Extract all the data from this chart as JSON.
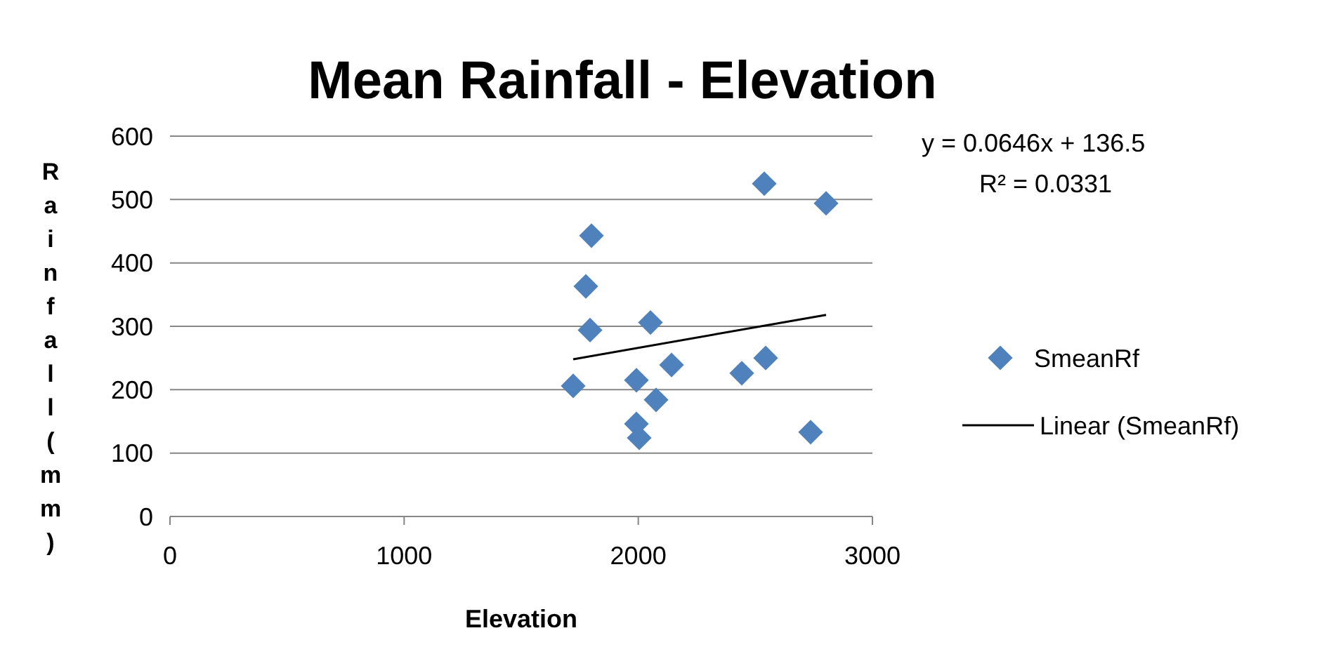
{
  "chart_data": {
    "type": "scatter",
    "title": "Mean Rainfall - Elevation",
    "xlabel": "Elevation",
    "ylabel": "Rainfall (mm)",
    "xlim": [
      0,
      3000
    ],
    "xticks": [
      0,
      1000,
      2000,
      3000
    ],
    "ylim": [
      0,
      600
    ],
    "yticks": [
      0,
      100,
      200,
      300,
      400,
      500,
      600
    ],
    "grid": "y",
    "legend": "right",
    "annotations": [
      "y = 0.0646x + 136.5",
      "R² = 0.0331"
    ],
    "series": [
      {
        "name": "SmeanRf",
        "color": "#4f81bd",
        "marker": "diamond",
        "x": [
          1722,
          1776,
          1800,
          1794,
          1992,
          1992,
          2004,
          2052,
          2076,
          2142,
          2442,
          2538,
          2544,
          2736,
          2802
        ],
        "values": [
          206,
          363,
          443,
          294,
          215,
          146,
          124,
          306,
          184,
          239,
          226,
          525,
          250,
          133,
          494
        ]
      },
      {
        "name": "Linear (SmeanRf)",
        "type": "line",
        "color": "#000000",
        "marker": "none",
        "x": [
          1722,
          2802
        ],
        "values": [
          248,
          318
        ]
      }
    ]
  }
}
